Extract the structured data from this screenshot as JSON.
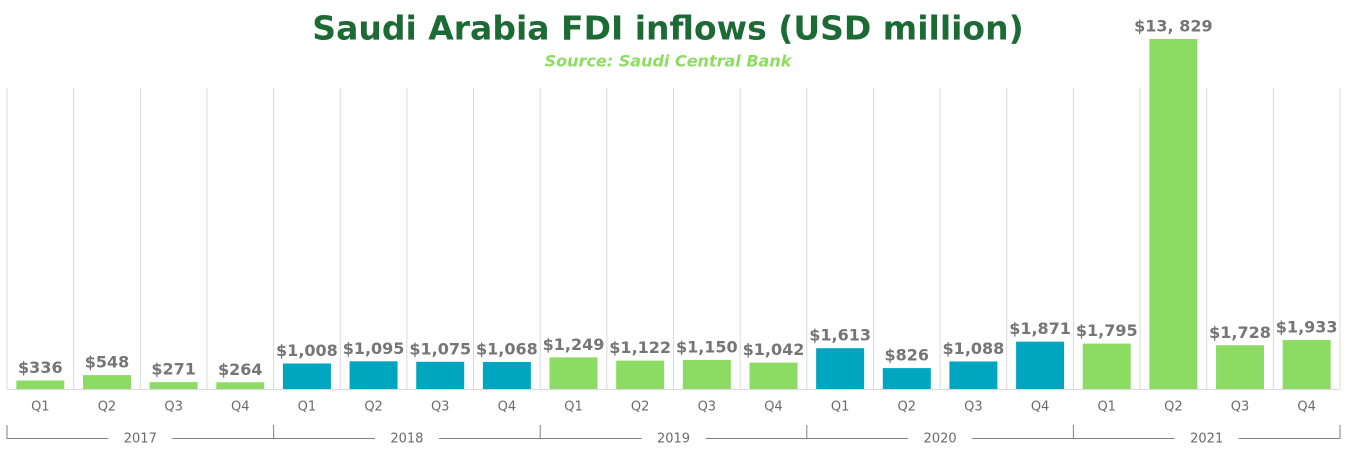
{
  "chart_data": {
    "type": "bar",
    "title": "Saudi Arabia FDI inflows (USD million)",
    "subtitle": "Source: Saudi Central Bank",
    "categories": [
      "Q1",
      "Q2",
      "Q3",
      "Q4",
      "Q1",
      "Q2",
      "Q3",
      "Q4",
      "Q1",
      "Q2",
      "Q3",
      "Q4",
      "Q1",
      "Q2",
      "Q3",
      "Q4",
      "Q1",
      "Q2",
      "Q3",
      "Q4"
    ],
    "groups": [
      "2017",
      "2018",
      "2019",
      "2020",
      "2021"
    ],
    "group_colors": [
      "#8cdc64",
      "#00a6bf",
      "#8cdc64",
      "#00a6bf",
      "#8cdc64"
    ],
    "values": [
      336,
      548,
      271,
      264,
      1008,
      1095,
      1075,
      1068,
      1249,
      1122,
      1150,
      1042,
      1613,
      826,
      1088,
      1871,
      1795,
      13829,
      1728,
      1933
    ],
    "value_labels": [
      "$336",
      "$548",
      "$271",
      "$264",
      "$1,008",
      "$1,095",
      "$1,075",
      "$1,068",
      "$1,249",
      "$1,122",
      "$1,150",
      "$1,042",
      "$1,613",
      "$826",
      "$1,088",
      "$1,871",
      "$1,795",
      "$13, 829",
      "$1,728",
      "$1,933"
    ]
  }
}
